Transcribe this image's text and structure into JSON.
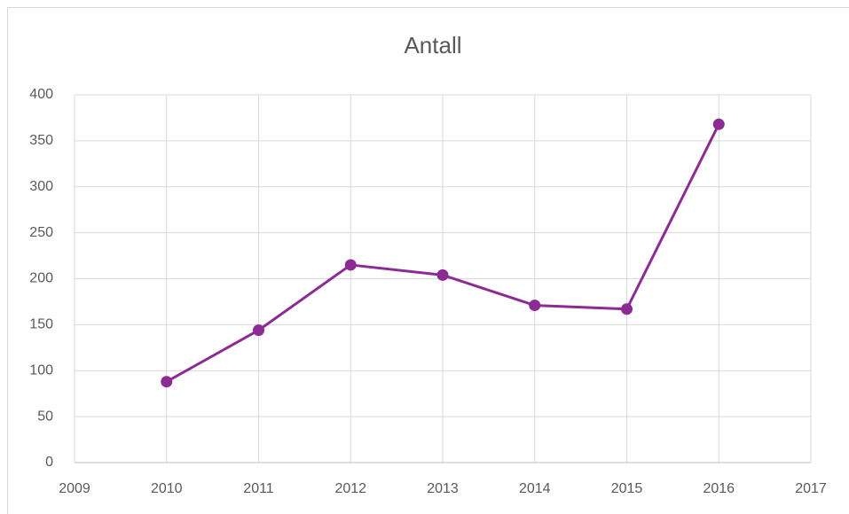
{
  "chart_data": {
    "type": "line",
    "title": "Antall",
    "x": [
      2010,
      2011,
      2012,
      2013,
      2014,
      2015,
      2016
    ],
    "series": [
      {
        "name": "Antall",
        "color": "#8b2b93",
        "values": [
          88,
          144,
          215,
          204,
          171,
          167,
          368
        ]
      }
    ],
    "xlim": [
      2009,
      2017
    ],
    "xticks": [
      2009,
      2010,
      2011,
      2012,
      2013,
      2014,
      2015,
      2016,
      2017
    ],
    "ylim": [
      0,
      400
    ],
    "yticks": [
      0,
      50,
      100,
      150,
      200,
      250,
      300,
      350,
      400
    ],
    "grid": true
  }
}
